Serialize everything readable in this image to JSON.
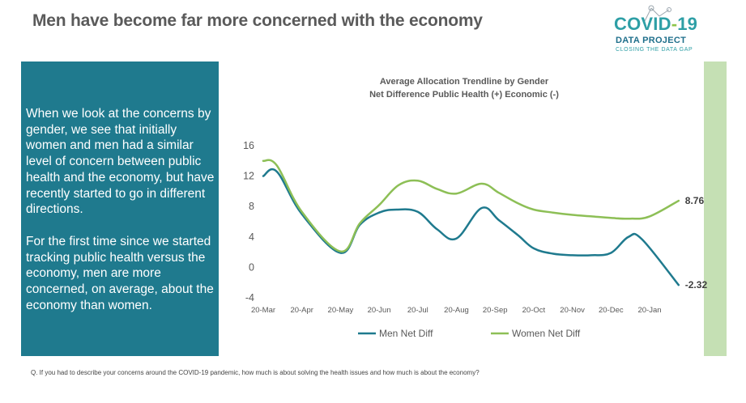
{
  "header": {
    "title": "Men have become far more concerned with the economy"
  },
  "logo": {
    "line1_a": "COVID",
    "line1_dash": "-",
    "line1_b": "19",
    "line2": "DATA PROJECT",
    "line3": "CLOSING THE DATA GAP"
  },
  "panel": {
    "paragraph1": "When we look at the concerns by gender, we see that initially women and men had a similar level of concern between public health and the economy, but have recently started to go in different directions.",
    "paragraph2": "For the first time since we started tracking public health versus the economy, men are more concerned, on average, about the economy than women."
  },
  "footnote": "Q. If you had to describe your concerns around the COVID-19 pandemic, how much is about solving the health issues and how much is about the economy?",
  "colors": {
    "men": "#1f7a8e",
    "women": "#8dbf56",
    "panel": "#1f7a8e",
    "side_bar": "#c5e0b4"
  },
  "chart_data": {
    "type": "line",
    "title": "Average Allocation Trendline by Gender",
    "subtitle": "Net Difference Public Health (+) Economic (-)",
    "categories": [
      "20-Mar",
      "20-Apr",
      "20-May",
      "20-Jun",
      "20-Jul",
      "20-Aug",
      "20-Sep",
      "20-Oct",
      "20-Nov",
      "20-Dec",
      "20-Jan"
    ],
    "y_ticks": [
      16,
      12,
      8,
      4,
      0,
      -4
    ],
    "ylim": [
      -4,
      16
    ],
    "grid": false,
    "legend_position": "bottom",
    "series": [
      {
        "name": "Men Net Diff",
        "x": [
          0,
          0.35,
          1.0,
          2.0,
          2.5,
          3.0,
          3.45,
          4.0,
          4.5,
          5.0,
          5.65,
          6.1,
          6.6,
          7.0,
          7.5,
          8.0,
          8.5,
          9.0,
          9.45,
          9.8,
          10.75
        ],
        "values": [
          12.0,
          12.6,
          7.0,
          1.9,
          5.6,
          7.2,
          7.6,
          7.3,
          5.0,
          3.8,
          7.8,
          6.2,
          4.2,
          2.5,
          1.8,
          1.6,
          1.6,
          1.9,
          4.0,
          3.7,
          -2.32
        ]
      },
      {
        "name": "Women Net Diff",
        "x": [
          0,
          0.35,
          1.0,
          2.0,
          2.5,
          3.0,
          3.5,
          4.0,
          4.5,
          5.0,
          5.65,
          6.1,
          6.6,
          7.0,
          7.5,
          8.0,
          8.5,
          9.0,
          9.5,
          10.0,
          10.75
        ],
        "values": [
          14.0,
          13.4,
          7.3,
          2.1,
          5.8,
          8.2,
          10.8,
          11.4,
          10.3,
          9.7,
          11.0,
          9.8,
          8.4,
          7.6,
          7.2,
          6.9,
          6.7,
          6.5,
          6.4,
          6.7,
          8.76
        ]
      }
    ],
    "end_labels": [
      "-2.32",
      "8.76"
    ]
  }
}
